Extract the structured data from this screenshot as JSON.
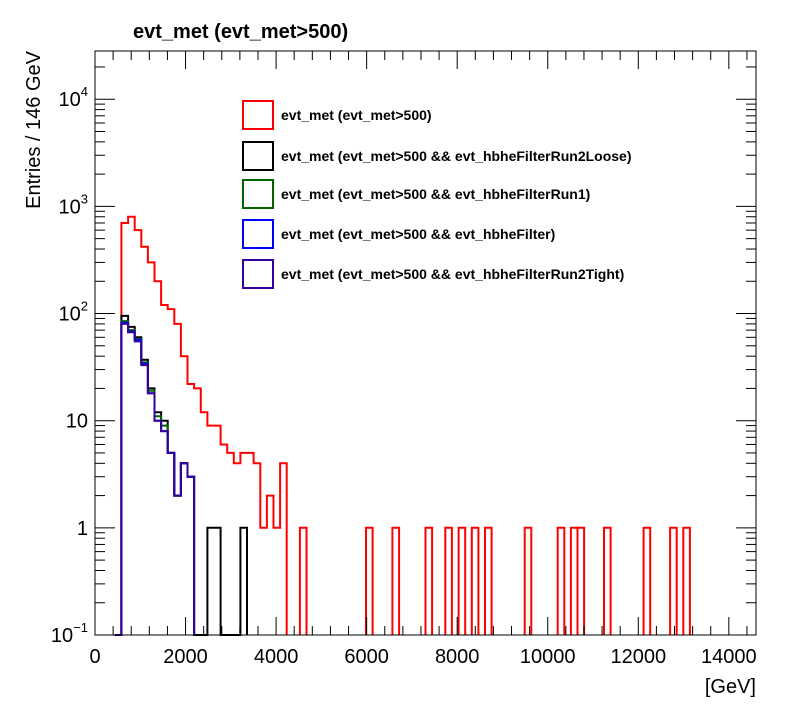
{
  "chart_data": {
    "type": "histogram",
    "title": "evt_met (evt_met>500)",
    "xlabel": "[GeV]",
    "ylabel": "Entries / 146 GeV",
    "xlim": [
      0,
      14600
    ],
    "ylim_log10": [
      -1,
      4.45
    ],
    "log_y": true,
    "grid": false,
    "legend_position": "top-center",
    "bin_width": 146,
    "x_ticks": [
      "0",
      "2000",
      "4000",
      "6000",
      "8000",
      "10000",
      "12000",
      "14000"
    ],
    "y_ticks": [
      {
        "label": "10",
        "sup": "4",
        "value": 10000
      },
      {
        "label": "10",
        "sup": "3",
        "value": 1000
      },
      {
        "label": "10",
        "sup": "2",
        "value": 100
      },
      {
        "label": "10",
        "sup": "",
        "value": 10
      },
      {
        "label": "1",
        "sup": "",
        "value": 1
      },
      {
        "label": "10",
        "sup": "−1",
        "value": 0.1
      }
    ],
    "series": [
      {
        "name": "evt_met (evt_met>500)",
        "color": "#ff0000",
        "steps": [
          [
            438,
            0.1
          ],
          [
            584,
            700
          ],
          [
            730,
            800
          ],
          [
            876,
            600
          ],
          [
            1022,
            420
          ],
          [
            1168,
            300
          ],
          [
            1314,
            200
          ],
          [
            1460,
            120
          ],
          [
            1606,
            110
          ],
          [
            1752,
            80
          ],
          [
            1898,
            40
          ],
          [
            2044,
            22
          ],
          [
            2190,
            20
          ],
          [
            2336,
            12
          ],
          [
            2482,
            9
          ],
          [
            2628,
            9
          ],
          [
            2774,
            6
          ],
          [
            2920,
            5
          ],
          [
            3066,
            4
          ],
          [
            3212,
            5
          ],
          [
            3358,
            5
          ],
          [
            3504,
            4
          ],
          [
            3650,
            1
          ],
          [
            3796,
            2
          ],
          [
            3942,
            1
          ],
          [
            4088,
            4
          ],
          [
            4234,
            0.1
          ]
        ],
        "isolated": [
          4526,
          5986,
          6570,
          7300,
          7738,
          8030,
          8322,
          8614,
          9490,
          10220,
          10512,
          10658,
          11242,
          12118,
          12702,
          12994
        ]
      },
      {
        "name": "evt_met (evt_met>500 && evt_hbheFilterRun2Loose)",
        "color": "#000000",
        "steps": [
          [
            438,
            0.1
          ],
          [
            584,
            95
          ],
          [
            730,
            75
          ],
          [
            876,
            60
          ],
          [
            1022,
            37
          ],
          [
            1168,
            20
          ],
          [
            1314,
            12
          ],
          [
            1460,
            10
          ],
          [
            1606,
            5
          ],
          [
            1752,
            2
          ],
          [
            1898,
            4
          ],
          [
            2044,
            3
          ],
          [
            2190,
            0.1
          ],
          [
            2482,
            1
          ],
          [
            2774,
            0.1
          ],
          [
            3212,
            1
          ],
          [
            3358,
            0.1
          ]
        ],
        "isolated": []
      },
      {
        "name": "evt_met (evt_met>500 && evt_hbheFilterRun1)",
        "color": "#006400",
        "steps": [
          [
            438,
            0.1
          ],
          [
            584,
            85
          ],
          [
            730,
            70
          ],
          [
            876,
            58
          ],
          [
            1022,
            35
          ],
          [
            1168,
            19
          ],
          [
            1314,
            11
          ],
          [
            1460,
            9
          ],
          [
            1606,
            5
          ],
          [
            1752,
            2
          ],
          [
            1898,
            4
          ],
          [
            2044,
            3
          ],
          [
            2190,
            0.1
          ]
        ],
        "isolated": []
      },
      {
        "name": "evt_met (evt_met>500 && evt_hbheFilter)",
        "color": "#0000ff",
        "steps": [
          [
            438,
            0.1
          ],
          [
            584,
            82
          ],
          [
            730,
            68
          ],
          [
            876,
            57
          ],
          [
            1022,
            34
          ],
          [
            1168,
            18
          ],
          [
            1314,
            10
          ],
          [
            1460,
            8
          ],
          [
            1606,
            5
          ],
          [
            1752,
            2
          ],
          [
            1898,
            4
          ],
          [
            2044,
            3
          ],
          [
            2190,
            0.1
          ]
        ],
        "isolated": []
      },
      {
        "name": "evt_met (evt_met>500 && evt_hbheFilterRun2Tight)",
        "color": "#330099",
        "steps": [
          [
            438,
            0.1
          ],
          [
            584,
            80
          ],
          [
            730,
            67
          ],
          [
            876,
            55
          ],
          [
            1022,
            33
          ],
          [
            1168,
            18
          ],
          [
            1314,
            10
          ],
          [
            1460,
            8
          ],
          [
            1606,
            5
          ],
          [
            1752,
            2
          ],
          [
            1898,
            4
          ],
          [
            2044,
            3
          ],
          [
            2190,
            0.1
          ]
        ],
        "isolated": []
      }
    ]
  }
}
